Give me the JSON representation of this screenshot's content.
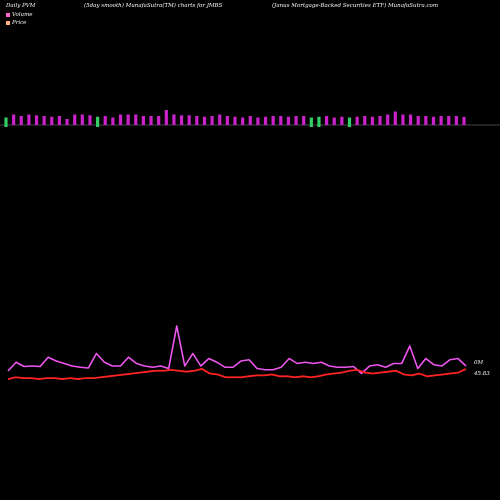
{
  "header": {
    "left": "Daily PVM",
    "middle": "(5day smooth) MunafaSutra(TM) charts for JMBS",
    "right": "(Janus Mortgage-Backed Securities ETF) MunafaSutra.com"
  },
  "legend": {
    "volume_label": "Volume",
    "price_label": "Price",
    "volume_color": "#ff66cc",
    "price_color": "#ffb080"
  },
  "chart_data": {
    "type": "bar+line",
    "volume_bars": {
      "colors": {
        "up": "#cc22cc",
        "down": "#33cc66"
      },
      "heights": [
        0.5,
        0.7,
        0.6,
        0.7,
        0.65,
        0.6,
        0.55,
        0.6,
        0.4,
        0.7,
        0.7,
        0.65,
        0.55,
        0.6,
        0.5,
        0.7,
        0.7,
        0.7,
        0.6,
        0.6,
        0.6,
        1.0,
        0.7,
        0.65,
        0.65,
        0.6,
        0.55,
        0.6,
        0.7,
        0.6,
        0.55,
        0.5,
        0.6,
        0.5,
        0.55,
        0.6,
        0.6,
        0.55,
        0.6,
        0.6,
        0.5,
        0.55,
        0.6,
        0.5,
        0.55,
        0.5,
        0.55,
        0.6,
        0.55,
        0.6,
        0.7,
        0.9,
        0.7,
        0.7,
        0.6,
        0.6,
        0.55,
        0.6,
        0.6,
        0.6,
        0.55
      ],
      "green_flags": [
        1,
        0,
        0,
        0,
        0,
        0,
        0,
        0,
        0,
        0,
        0,
        0,
        1,
        0,
        0,
        0,
        0,
        0,
        0,
        0,
        0,
        0,
        0,
        0,
        0,
        0,
        0,
        0,
        0,
        0,
        0,
        0,
        0,
        0,
        0,
        0,
        0,
        0,
        0,
        0,
        1,
        1,
        0,
        0,
        0,
        1,
        0,
        0,
        0,
        0,
        0,
        0,
        0,
        0,
        0,
        0,
        0,
        0,
        0,
        0,
        0
      ]
    },
    "volume_line": {
      "label": "0M",
      "color": "#ee55ee",
      "values": [
        0.2,
        0.55,
        0.38,
        0.4,
        0.38,
        0.75,
        0.6,
        0.5,
        0.4,
        0.35,
        0.32,
        0.9,
        0.55,
        0.4,
        0.4,
        0.75,
        0.5,
        0.4,
        0.35,
        0.4,
        0.3,
        2.0,
        0.4,
        0.9,
        0.4,
        0.7,
        0.55,
        0.35,
        0.35,
        0.6,
        0.65,
        0.3,
        0.25,
        0.25,
        0.35,
        0.7,
        0.5,
        0.55,
        0.5,
        0.55,
        0.4,
        0.35,
        0.35,
        0.38,
        0.1,
        0.4,
        0.45,
        0.35,
        0.5,
        0.5,
        1.2,
        0.3,
        0.7,
        0.45,
        0.4,
        0.65,
        0.7,
        0.4
      ]
    },
    "price_line": {
      "label": "45.83",
      "color": "#ff2222",
      "values": [
        45.71,
        45.73,
        45.72,
        45.72,
        45.71,
        45.72,
        45.72,
        45.71,
        45.72,
        45.71,
        45.72,
        45.72,
        45.73,
        45.74,
        45.75,
        45.76,
        45.77,
        45.78,
        45.79,
        45.8,
        45.8,
        45.81,
        45.8,
        45.79,
        45.8,
        45.82,
        45.77,
        45.76,
        45.73,
        45.73,
        45.73,
        45.74,
        45.75,
        45.75,
        45.76,
        45.74,
        45.74,
        45.73,
        45.74,
        45.73,
        45.74,
        45.76,
        45.77,
        45.78,
        45.8,
        45.81,
        45.78,
        45.77,
        45.78,
        45.79,
        45.8,
        45.76,
        45.75,
        45.77,
        45.74,
        45.75,
        45.76,
        45.77,
        45.78,
        45.82
      ]
    }
  }
}
